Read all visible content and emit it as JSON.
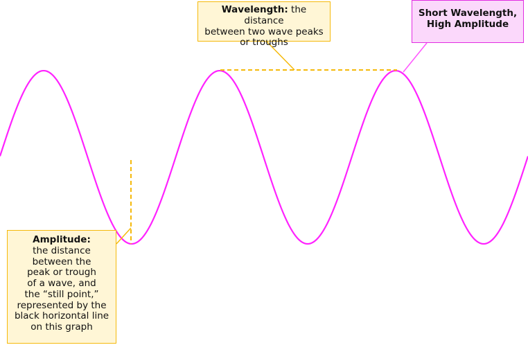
{
  "wave": {
    "color": "#ff22ff",
    "guide_color": "#f5b90a",
    "connector_color": "#ff55ff"
  },
  "callouts": {
    "wavelength": {
      "term": "Wavelength:",
      "definition_lines": [
        " the distance",
        "between two wave peaks",
        "or troughs"
      ]
    },
    "short_wavelength": {
      "lines": [
        "Short Wavelength,",
        "High Amplitude"
      ]
    },
    "amplitude": {
      "term": "Amplitude:",
      "definition_lines": [
        "the distance",
        "between the",
        "peak or trough",
        "of a wave, and",
        "the “still point,”",
        "represented by the",
        "black horizontal line",
        "on this graph"
      ]
    }
  }
}
